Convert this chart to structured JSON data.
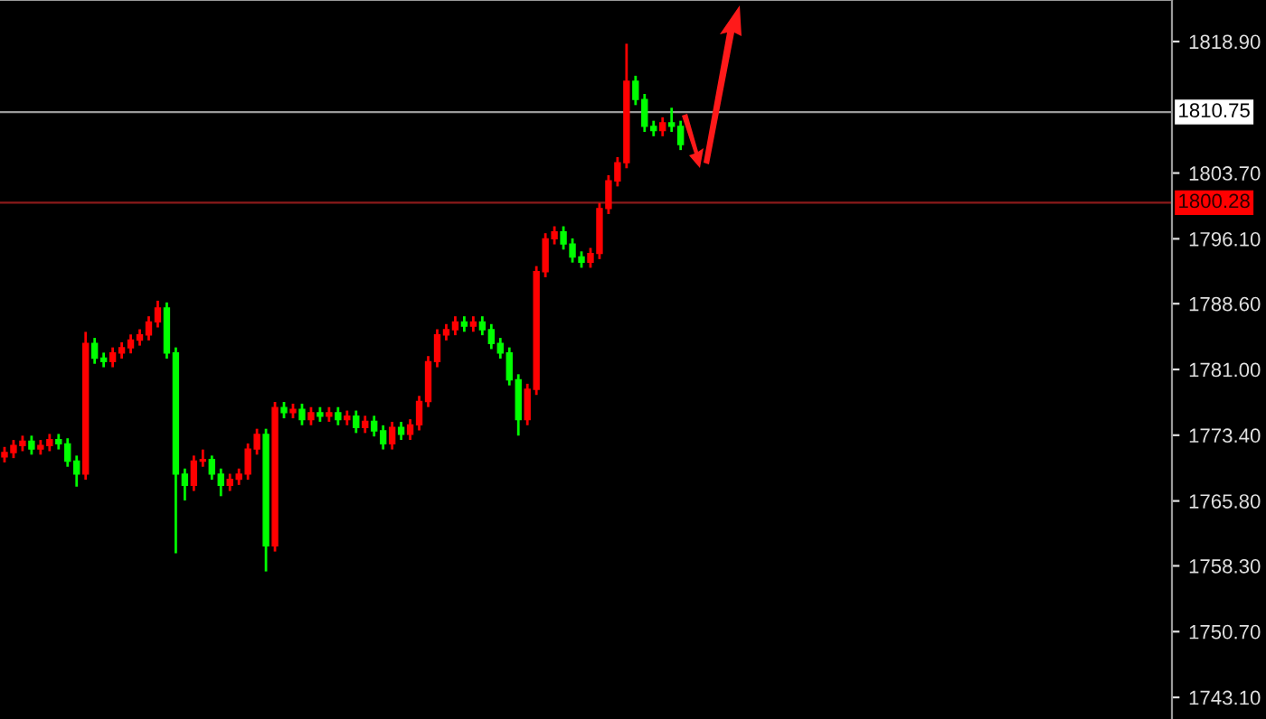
{
  "chart_data": {
    "type": "candlestick",
    "categories": [
      null,
      null,
      null,
      null,
      null,
      null,
      null,
      null,
      null,
      null,
      null,
      null,
      null,
      null,
      null,
      null,
      null,
      null,
      null,
      null,
      null,
      null,
      null,
      null,
      null,
      null,
      null,
      null,
      null,
      null,
      null,
      null,
      null,
      null,
      null,
      null,
      null,
      null,
      null,
      null,
      null,
      null,
      null,
      null,
      null,
      null,
      null,
      null,
      null,
      null,
      null,
      null,
      null,
      null,
      null,
      null,
      null,
      null,
      null,
      null,
      null,
      null,
      null,
      null,
      null,
      null,
      null,
      null,
      null,
      null,
      null,
      null,
      null,
      null,
      null,
      null,
      null,
      null,
      null,
      null,
      null,
      null,
      null,
      null,
      null,
      null,
      null,
      null,
      null,
      null,
      null,
      null,
      null,
      null,
      null,
      null,
      null,
      null,
      null,
      null,
      null,
      null,
      null,
      null,
      null,
      null,
      null,
      null,
      null,
      null,
      null,
      null,
      null,
      null,
      null,
      null,
      null,
      null,
      null,
      null,
      null,
      null,
      null,
      null,
      null,
      null,
      null,
      null,
      null,
      null
    ],
    "ohlc": [
      [
        1770.9,
        1771.9,
        1770.4,
        1771.4
      ],
      [
        1771.4,
        1772.7,
        1770.9,
        1772.2
      ],
      [
        1772.2,
        1773.2,
        1771.7,
        1772.7
      ],
      [
        1772.7,
        1773.2,
        1771.3,
        1771.8
      ],
      [
        1771.8,
        1772.7,
        1771.3,
        1772.2
      ],
      [
        1772.2,
        1773.4,
        1771.7,
        1772.9
      ],
      [
        1772.9,
        1773.4,
        1771.9,
        1772.4
      ],
      [
        1772.4,
        1772.9,
        1769.9,
        1770.4
      ],
      [
        1770.4,
        1770.9,
        1767.6,
        1768.9
      ],
      [
        1768.9,
        1785.2,
        1768.4,
        1784.0
      ],
      [
        1784.0,
        1784.5,
        1781.8,
        1782.3
      ],
      [
        1782.3,
        1782.8,
        1781.4,
        1781.9
      ],
      [
        1781.9,
        1783.4,
        1781.4,
        1782.9
      ],
      [
        1782.9,
        1784.0,
        1782.4,
        1783.5
      ],
      [
        1783.5,
        1784.9,
        1783.0,
        1784.4
      ],
      [
        1784.4,
        1785.5,
        1783.9,
        1785.0
      ],
      [
        1785.0,
        1787.0,
        1784.5,
        1786.5
      ],
      [
        1786.5,
        1788.8,
        1786.0,
        1788.1
      ],
      [
        1788.1,
        1788.6,
        1782.4,
        1782.9
      ],
      [
        1782.9,
        1783.4,
        1759.9,
        1768.9
      ],
      [
        1768.9,
        1769.4,
        1766.0,
        1767.6
      ],
      [
        1767.6,
        1770.9,
        1767.1,
        1770.4
      ],
      [
        1770.4,
        1771.6,
        1769.9,
        1770.6
      ],
      [
        1770.6,
        1770.9,
        1768.4,
        1768.9
      ],
      [
        1768.9,
        1769.4,
        1766.5,
        1767.6
      ],
      [
        1767.6,
        1768.8,
        1767.1,
        1768.3
      ],
      [
        1768.3,
        1769.4,
        1767.8,
        1768.9
      ],
      [
        1768.9,
        1772.3,
        1768.4,
        1771.8
      ],
      [
        1771.8,
        1774.0,
        1771.3,
        1773.5
      ],
      [
        1773.5,
        1774.0,
        1757.8,
        1760.6
      ],
      [
        1760.6,
        1777.1,
        1760.1,
        1776.6
      ],
      [
        1776.6,
        1777.1,
        1775.5,
        1776.0
      ],
      [
        1776.0,
        1776.9,
        1775.5,
        1776.4
      ],
      [
        1776.4,
        1776.9,
        1774.7,
        1775.2
      ],
      [
        1775.2,
        1776.5,
        1774.7,
        1776.0
      ],
      [
        1776.0,
        1776.5,
        1775.1,
        1775.6
      ],
      [
        1775.6,
        1776.5,
        1775.1,
        1776.0
      ],
      [
        1776.0,
        1776.5,
        1774.7,
        1775.2
      ],
      [
        1775.2,
        1776.1,
        1774.7,
        1775.6
      ],
      [
        1775.6,
        1776.1,
        1773.8,
        1774.3
      ],
      [
        1774.3,
        1775.5,
        1773.8,
        1775.0
      ],
      [
        1775.0,
        1775.5,
        1773.4,
        1773.9
      ],
      [
        1773.9,
        1774.4,
        1771.9,
        1772.4
      ],
      [
        1772.4,
        1774.8,
        1771.9,
        1774.3
      ],
      [
        1774.3,
        1774.8,
        1773.0,
        1773.5
      ],
      [
        1773.5,
        1775.1,
        1773.0,
        1774.6
      ],
      [
        1774.6,
        1777.8,
        1774.1,
        1777.3
      ],
      [
        1777.3,
        1782.4,
        1776.8,
        1781.9
      ],
      [
        1781.9,
        1785.5,
        1781.4,
        1785.0
      ],
      [
        1785.0,
        1786.1,
        1784.5,
        1785.6
      ],
      [
        1785.6,
        1787.0,
        1785.1,
        1786.5
      ],
      [
        1786.5,
        1787.0,
        1785.5,
        1786.0
      ],
      [
        1786.0,
        1787.0,
        1785.5,
        1786.5
      ],
      [
        1786.5,
        1787.0,
        1785.1,
        1785.6
      ],
      [
        1785.6,
        1786.1,
        1783.5,
        1784.0
      ],
      [
        1784.0,
        1784.5,
        1782.4,
        1782.9
      ],
      [
        1782.9,
        1783.4,
        1779.3,
        1779.8
      ],
      [
        1779.8,
        1780.3,
        1773.5,
        1775.2
      ],
      [
        1775.2,
        1779.2,
        1774.7,
        1778.7
      ],
      [
        1778.7,
        1792.8,
        1778.2,
        1792.3
      ],
      [
        1792.3,
        1796.6,
        1791.8,
        1796.1
      ],
      [
        1796.1,
        1797.4,
        1795.6,
        1796.9
      ],
      [
        1796.9,
        1797.4,
        1795.0,
        1795.5
      ],
      [
        1795.5,
        1796.0,
        1793.5,
        1794.0
      ],
      [
        1794.0,
        1794.5,
        1792.9,
        1793.4
      ],
      [
        1793.4,
        1794.9,
        1792.9,
        1794.4
      ],
      [
        1794.4,
        1800.1,
        1793.9,
        1799.6
      ],
      [
        1799.6,
        1803.3,
        1799.1,
        1802.8
      ],
      [
        1802.8,
        1805.4,
        1802.3,
        1804.9
      ],
      [
        1804.9,
        1818.5,
        1804.4,
        1814.3
      ],
      [
        1814.3,
        1814.8,
        1811.7,
        1812.2
      ],
      [
        1812.2,
        1812.7,
        1808.6,
        1809.1
      ],
      [
        1809.1,
        1809.6,
        1808.1,
        1808.6
      ],
      [
        1808.6,
        1810.0,
        1808.1,
        1809.5
      ],
      [
        1809.5,
        1811.1,
        1808.6,
        1809.1
      ],
      [
        1809.1,
        1809.6,
        1806.5,
        1807.0
      ],
      null,
      null,
      null,
      null,
      null,
      null,
      null,
      null,
      null,
      null,
      null,
      null,
      null,
      null,
      null,
      null,
      null,
      null,
      null,
      null,
      null,
      null,
      null,
      null,
      null,
      null,
      null,
      null,
      null,
      null,
      null,
      null,
      null,
      null,
      null,
      null,
      null,
      null,
      null,
      null,
      null,
      null,
      null,
      null,
      null,
      null,
      null,
      null,
      null,
      null,
      null,
      null,
      null,
      null
    ],
    "colors": [
      "#ff0000",
      "#ff0000",
      "#ff0000",
      "#00ff00",
      "#ff0000",
      "#ff0000",
      "#00ff00",
      "#00ff00",
      "#00ff00",
      "#ff0000",
      "#00ff00",
      "#00ff00",
      "#ff0000",
      "#ff0000",
      "#ff0000",
      "#ff0000",
      "#ff0000",
      "#ff0000",
      "#00ff00",
      "#00ff00",
      "#00ff00",
      "#ff0000",
      "#ff0000",
      "#00ff00",
      "#00ff00",
      "#ff0000",
      "#ff0000",
      "#ff0000",
      "#ff0000",
      "#00ff00",
      "#ff0000",
      "#00ff00",
      "#ff0000",
      "#00ff00",
      "#ff0000",
      "#00ff00",
      "#ff0000",
      "#00ff00",
      "#ff0000",
      "#00ff00",
      "#ff0000",
      "#00ff00",
      "#00ff00",
      "#ff0000",
      "#00ff00",
      "#ff0000",
      "#ff0000",
      "#ff0000",
      "#ff0000",
      "#ff0000",
      "#ff0000",
      "#00ff00",
      "#ff0000",
      "#00ff00",
      "#00ff00",
      "#00ff00",
      "#00ff00",
      "#00ff00",
      "#ff0000",
      "#ff0000",
      "#ff0000",
      "#ff0000",
      "#00ff00",
      "#00ff00",
      "#00ff00",
      "#ff0000",
      "#ff0000",
      "#ff0000",
      "#ff0000",
      "#ff0000",
      "#00ff00",
      "#00ff00",
      "#00ff00",
      "#ff0000",
      "#00ff00",
      "#00ff00",
      null,
      null,
      null,
      null,
      null,
      null,
      null,
      null,
      null,
      null,
      null,
      null,
      null,
      null,
      null,
      null,
      null,
      null,
      null,
      null,
      null,
      null,
      null,
      null,
      null,
      null,
      null,
      null,
      null,
      null,
      null,
      null,
      null,
      null,
      null,
      null,
      null,
      null,
      null,
      null,
      null,
      null,
      null,
      null,
      null,
      null,
      null,
      null,
      null,
      null,
      null,
      null,
      null,
      null
    ],
    "ylim": [
      1740.6,
      1823.7
    ],
    "yticks": [
      {
        "value": 1818.9,
        "label": "1818.90"
      },
      {
        "value": 1803.7,
        "label": "1803.70"
      },
      {
        "value": 1796.1,
        "label": "1796.10"
      },
      {
        "value": 1788.6,
        "label": "1788.60"
      },
      {
        "value": 1781.0,
        "label": "1781.00"
      },
      {
        "value": 1773.4,
        "label": "1773.40"
      },
      {
        "value": 1765.8,
        "label": "1765.80"
      },
      {
        "value": 1758.3,
        "label": "1758.30"
      },
      {
        "value": 1750.7,
        "label": "1750.70"
      },
      {
        "value": 1743.1,
        "label": "1743.10"
      }
    ],
    "ref_lines": [
      {
        "axis": "y",
        "value": 1810.75,
        "label": "1810.75",
        "color": "#9a9a9a"
      },
      {
        "axis": "y",
        "value": 1800.28,
        "label": "1800.28",
        "color": "#8b1a1a"
      }
    ],
    "tick_labels": "y",
    "grid": false
  }
}
